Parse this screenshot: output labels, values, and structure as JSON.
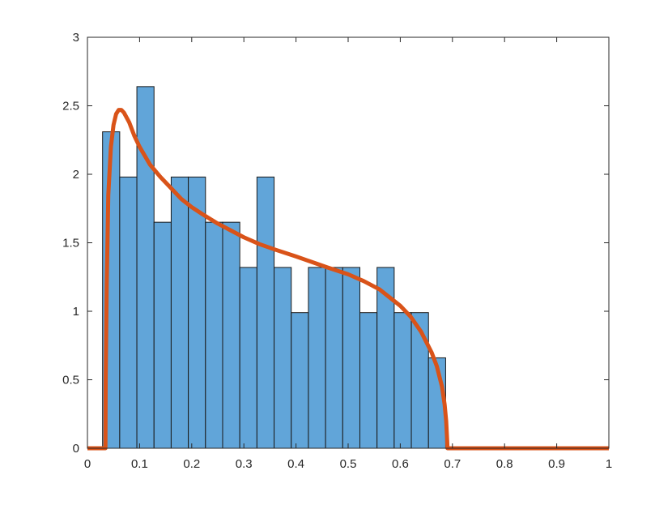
{
  "chart_data": {
    "type": "bar",
    "title": "",
    "xlabel": "",
    "ylabel": "",
    "xlim": [
      0,
      1
    ],
    "ylim": [
      0,
      3
    ],
    "grid": false,
    "box": true,
    "x_ticks": [
      "0",
      "0.1",
      "0.2",
      "0.3",
      "0.4",
      "0.5",
      "0.6",
      "0.7",
      "0.8",
      "0.9",
      "1"
    ],
    "y_ticks": [
      "0",
      "0.5",
      "1",
      "1.5",
      "2",
      "2.5",
      "3"
    ],
    "histogram": {
      "name": "",
      "color": "#61A5D9",
      "edge_color": "#1a1a1a",
      "bin_width": 0.0329,
      "bin_edges": [
        0.029,
        0.0619,
        0.0948,
        0.1277,
        0.1606,
        0.1935,
        0.2264,
        0.2593,
        0.2922,
        0.3251,
        0.358,
        0.3909,
        0.4238,
        0.4567,
        0.4896,
        0.5225,
        0.5554,
        0.5883,
        0.6212,
        0.6541,
        0.687
      ],
      "values": [
        2.31,
        1.98,
        2.64,
        1.65,
        1.98,
        1.98,
        1.65,
        1.65,
        1.32,
        1.98,
        1.32,
        0.99,
        1.32,
        1.32,
        1.32,
        0.99,
        1.32,
        0.99,
        0.99,
        0.66
      ]
    },
    "curve": {
      "name": "",
      "color": "#D95319",
      "x": [
        0,
        0.0345,
        0.035,
        0.037,
        0.04,
        0.045,
        0.05,
        0.055,
        0.06,
        0.065,
        0.07,
        0.08,
        0.09,
        0.1,
        0.12,
        0.14,
        0.16,
        0.18,
        0.2,
        0.22,
        0.25,
        0.28,
        0.3,
        0.33,
        0.36,
        0.4,
        0.43,
        0.46,
        0.5,
        0.53,
        0.56,
        0.58,
        0.6,
        0.62,
        0.64,
        0.66,
        0.67,
        0.68,
        0.685,
        0.688,
        0.69,
        0.6905,
        1
      ],
      "y": [
        0,
        0,
        0.5,
        1.2,
        1.85,
        2.2,
        2.36,
        2.44,
        2.47,
        2.47,
        2.45,
        2.38,
        2.28,
        2.2,
        2.07,
        1.98,
        1.9,
        1.82,
        1.76,
        1.71,
        1.64,
        1.58,
        1.54,
        1.49,
        1.45,
        1.4,
        1.36,
        1.32,
        1.27,
        1.22,
        1.16,
        1.1,
        1.04,
        0.96,
        0.85,
        0.7,
        0.6,
        0.45,
        0.32,
        0.2,
        0.05,
        0,
        0
      ]
    }
  }
}
